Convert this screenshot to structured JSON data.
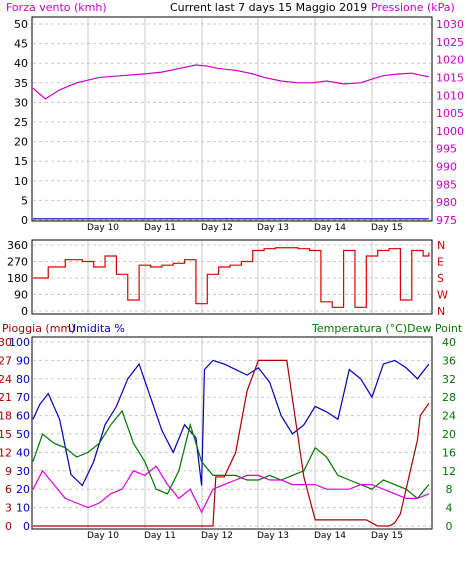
{
  "header": {
    "left_label": "Forza vento (kmh)",
    "title": "Current last 7 days 15 Maggio 2019",
    "right_label": "Pressione (kPa)"
  },
  "bottom_header": {
    "left_label_1": "Pioggia (mm)",
    "left_label_2": "Umidita %",
    "right_label": "Temperatura (°C)Dew Point"
  },
  "colors": {
    "wind": "#0000cc",
    "pressure": "#cc00cc",
    "direction": "#dd0000",
    "rain": "#aa0000",
    "humidity": "#0000bb",
    "temperature": "#007700",
    "dewpoint": "#dd00dd",
    "grid": "#c8c8c8"
  },
  "chart_data": [
    {
      "type": "line",
      "name": "wind-pressure",
      "x_labels": [
        "Day 10",
        "Day 11",
        "Day 12",
        "Day 13",
        "Day 14",
        "Day 15"
      ],
      "left_axis": {
        "label": "Forza vento (kmh)",
        "ticks": [
          0,
          5,
          10,
          15,
          20,
          25,
          30,
          35,
          40,
          45,
          50
        ],
        "ylim": [
          0,
          50
        ]
      },
      "right_axis": {
        "label": "Pressione (kPa)",
        "ticks": [
          975,
          980,
          985,
          990,
          995,
          1000,
          1005,
          1010,
          1015,
          1020,
          1025,
          1030
        ],
        "ylim": [
          975,
          1030
        ]
      },
      "series": [
        {
          "name": "Forza vento (kmh)",
          "axis": "left",
          "x": [
            0,
            7
          ],
          "values": [
            0.3,
            0.3
          ]
        },
        {
          "name": "Pressione (kPa)",
          "axis": "right",
          "x": [
            0,
            0.1,
            0.25,
            0.5,
            0.8,
            1.2,
            1.6,
            2.0,
            2.3,
            2.6,
            2.9,
            3.1,
            3.3,
            3.6,
            3.9,
            4.1,
            4.4,
            4.7,
            4.95,
            5.2,
            5.5,
            5.8,
            6.05,
            6.2,
            6.35,
            6.5,
            6.7,
            6.9,
            7.0
          ],
          "values": [
            1012,
            1011,
            1009,
            1011.5,
            1013.5,
            1015,
            1015.5,
            1016,
            1016.5,
            1017.5,
            1018.5,
            1018.2,
            1017.5,
            1017,
            1016,
            1015,
            1014,
            1013.5,
            1013.5,
            1014,
            1013.2,
            1013.5,
            1014.8,
            1015.5,
            1015.8,
            1016,
            1016.2,
            1015.5,
            1015.2
          ]
        }
      ]
    },
    {
      "type": "line",
      "name": "wind-direction",
      "x_labels": [
        "Day 10",
        "Day 11",
        "Day 12",
        "Day 13",
        "Day 14",
        "Day 15"
      ],
      "left_axis": {
        "ticks": [
          0,
          90,
          180,
          270,
          360
        ],
        "ylim": [
          0,
          360
        ]
      },
      "right_axis": {
        "ticks": [
          "N",
          "W",
          "S",
          "E",
          "N"
        ]
      },
      "series": [
        {
          "name": "Direction",
          "x": [
            0,
            0.3,
            0.6,
            0.9,
            1.1,
            1.3,
            1.5,
            1.7,
            1.9,
            2.1,
            2.3,
            2.5,
            2.7,
            2.9,
            3.1,
            3.3,
            3.5,
            3.7,
            3.9,
            4.1,
            4.3,
            4.5,
            4.7,
            4.9,
            5.1,
            5.3,
            5.5,
            5.7,
            5.9,
            6.1,
            6.3,
            6.5,
            6.7,
            6.9,
            7.0
          ],
          "values": [
            180,
            240,
            280,
            270,
            240,
            300,
            200,
            60,
            250,
            240,
            250,
            260,
            280,
            40,
            200,
            240,
            250,
            270,
            330,
            340,
            345,
            345,
            340,
            330,
            50,
            20,
            330,
            20,
            300,
            330,
            340,
            60,
            330,
            300,
            320
          ]
        }
      ]
    },
    {
      "type": "line",
      "name": "rain-humidity-temperature",
      "x_labels": [
        "Day 10",
        "Day 11",
        "Day 12",
        "Day 13",
        "Day 14",
        "Day 15"
      ],
      "left_axis": {
        "label": "Pioggia (mm) / Umidita %",
        "ticks": [
          0,
          10,
          20,
          30,
          40,
          50,
          60,
          70,
          80,
          90,
          100
        ],
        "ylim": [
          0,
          100
        ]
      },
      "left_axis_2": {
        "ticks": [
          0,
          3,
          6,
          9,
          12,
          15,
          18,
          21,
          24,
          27,
          30
        ],
        "ylim": [
          0,
          30
        ]
      },
      "right_axis": {
        "label": "Temperatura (°C)Dew Point",
        "ticks": [
          0,
          4,
          8,
          12,
          16,
          20,
          24,
          28,
          32,
          36,
          40
        ],
        "ylim": [
          0,
          40
        ]
      },
      "series": [
        {
          "name": "Umidita %",
          "axis": "left",
          "x": [
            0,
            0.15,
            0.3,
            0.5,
            0.7,
            0.9,
            1.1,
            1.3,
            1.5,
            1.7,
            1.9,
            2.1,
            2.3,
            2.5,
            2.7,
            2.9,
            3.0,
            3.05,
            3.2,
            3.4,
            3.6,
            3.8,
            4.0,
            4.2,
            4.4,
            4.6,
            4.8,
            5.0,
            5.2,
            5.4,
            5.6,
            5.8,
            6.0,
            6.2,
            6.4,
            6.6,
            6.8,
            7.0
          ],
          "values": [
            58,
            66,
            72,
            58,
            28,
            22,
            35,
            55,
            65,
            80,
            88,
            70,
            52,
            40,
            55,
            48,
            22,
            85,
            90,
            88,
            85,
            82,
            86,
            78,
            60,
            50,
            55,
            65,
            62,
            58,
            85,
            80,
            70,
            88,
            90,
            86,
            80,
            88
          ]
        },
        {
          "name": "Pioggia (mm)",
          "axis": "left2",
          "x": [
            0,
            3.2,
            3.25,
            3.4,
            3.6,
            3.8,
            4.0,
            4.2,
            4.5,
            4.8,
            5.0,
            5.3,
            5.6,
            5.9,
            6.0,
            6.1,
            6.3,
            6.4,
            6.5,
            6.6,
            6.7,
            6.8,
            6.85,
            7.0
          ],
          "values": [
            0,
            0,
            8,
            8,
            12,
            22,
            27,
            27,
            27,
            8,
            1,
            1,
            1,
            1,
            0.5,
            0,
            0,
            0.5,
            2,
            6,
            10,
            14,
            18,
            20
          ]
        },
        {
          "name": "Temperatura (°C)",
          "axis": "right",
          "x": [
            0,
            0.2,
            0.4,
            0.6,
            0.8,
            1.0,
            1.2,
            1.4,
            1.6,
            1.8,
            2.0,
            2.2,
            2.4,
            2.6,
            2.8,
            3.0,
            3.2,
            3.4,
            3.6,
            3.8,
            4.0,
            4.2,
            4.4,
            4.6,
            4.8,
            5.0,
            5.2,
            5.4,
            5.6,
            5.8,
            6.0,
            6.2,
            6.4,
            6.6,
            6.8,
            7.0
          ],
          "values": [
            14,
            20,
            18,
            17,
            15,
            16,
            18,
            22,
            25,
            18,
            14,
            8,
            7,
            12,
            22,
            14,
            11,
            11,
            11,
            10,
            10,
            11,
            10,
            11,
            12,
            17,
            15,
            11,
            10,
            9,
            8,
            10,
            9,
            8,
            6,
            9
          ]
        },
        {
          "name": "Dew Point",
          "axis": "right",
          "x": [
            0,
            0.2,
            0.4,
            0.6,
            0.8,
            1.0,
            1.2,
            1.4,
            1.6,
            1.8,
            2.0,
            2.2,
            2.4,
            2.6,
            2.8,
            3.0,
            3.2,
            3.4,
            3.6,
            3.8,
            4.0,
            4.2,
            4.4,
            4.6,
            4.8,
            5.0,
            5.2,
            5.4,
            5.6,
            5.8,
            6.0,
            6.2,
            6.4,
            6.6,
            6.8,
            7.0
          ],
          "values": [
            8,
            12,
            9,
            6,
            5,
            4,
            5,
            7,
            8,
            12,
            11,
            13,
            9,
            6,
            8,
            3,
            8,
            9,
            10,
            11,
            11,
            10,
            10,
            9,
            9,
            9,
            8,
            8,
            8,
            9,
            9,
            8,
            7,
            6,
            6,
            7
          ]
        }
      ]
    }
  ]
}
